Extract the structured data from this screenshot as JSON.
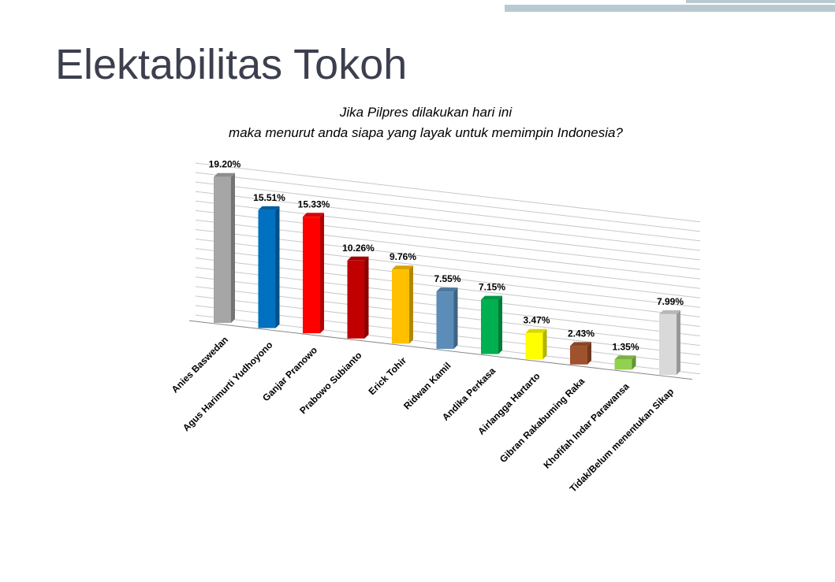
{
  "slide_title": "Elektabilitas Tokoh",
  "chart_data": {
    "type": "bar",
    "title": "Jika Pilpres dilakukan hari ini",
    "subtitle": "maka menurut anda siapa yang layak untuk memimpin Indonesia?",
    "categories": [
      "Anies Baswedan",
      "Agus Harimurti Yudhoyono",
      "Ganjar Pranowo",
      "Prabowo Subianto",
      "Erick Tohir",
      "Ridwan Kamil",
      "Andika Perkasa",
      "Airlangga Hartarto",
      "Gibran Rakabuming Raka",
      "Khofifah Indar Parawansa",
      "Tidak/Belum menentukan Sikap"
    ],
    "values": [
      19.2,
      15.51,
      15.33,
      10.26,
      9.76,
      7.55,
      7.15,
      3.47,
      2.43,
      1.35,
      7.99
    ],
    "value_labels": [
      "19.20%",
      "15.51%",
      "15.33%",
      "10.26%",
      "9.76%",
      "7.55%",
      "7.15%",
      "3.47%",
      "2.43%",
      "1.35%",
      "7.99%"
    ],
    "colors": [
      "#a6a6a6",
      "#0070c0",
      "#ff0000",
      "#c00000",
      "#ffc000",
      "#5b8db8",
      "#00b050",
      "#ffff00",
      "#a0522d",
      "#92d050",
      "#d9d9d9"
    ],
    "ylim": [
      0,
      20
    ],
    "yticks": [
      0,
      1.25,
      2.5,
      3.75,
      5,
      6.25,
      7.5,
      8.75,
      10,
      11.25,
      12.5,
      13.75,
      15,
      16.25,
      17.5,
      18.75,
      20
    ],
    "grid": true
  }
}
